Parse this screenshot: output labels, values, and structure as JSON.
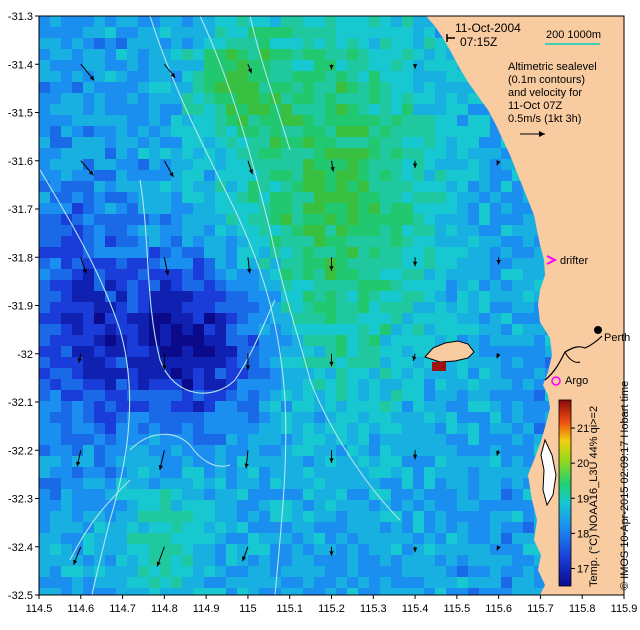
{
  "map": {
    "header": {
      "date": "11-Oct-2004",
      "time": "07:15Z",
      "scale_label": "200  1000m"
    },
    "legend_note": {
      "lines": [
        "Altimetric sealevel",
        "(0.1m contours)",
        "and velocity for",
        "11-Oct 07Z",
        "0.5m/s (1kt 3h)"
      ]
    },
    "place_labels": {
      "perth": "Perth",
      "drifter": "drifter",
      "argo": "Argo"
    },
    "colorbar": {
      "label": "Temp. (°C) NOAA16_L3U 44% qi>=2",
      "ticks": [
        17,
        18,
        19,
        20,
        21
      ],
      "min": 16.5,
      "max": 21.8
    },
    "credit": "© IMOS 10-Apr-2015 02:09:17 Hobart time",
    "axes": {
      "x_ticks": [
        "114.5",
        "114.6",
        "114.7",
        "114.8",
        "114.9",
        "115",
        "115.1",
        "115.2",
        "115.3",
        "115.4",
        "115.5",
        "115.6",
        "115.7",
        "115.8",
        "115.9"
      ],
      "y_ticks": [
        "-31.3",
        "-31.4",
        "-31.5",
        "-31.6",
        "-31.7",
        "-31.8",
        "-31.9",
        "-32",
        "-32.1",
        "-32.2",
        "-32.3",
        "-32.4",
        "-32.5"
      ],
      "lon_range": [
        114.5,
        115.9
      ],
      "lat_range": [
        -32.5,
        -31.3
      ]
    },
    "colors": {
      "land": "#f8cba0",
      "contour": "#aee6ee",
      "drifter": "#ff00ff",
      "argo": "#ff00ff",
      "scale_bar": "#00d0c0"
    },
    "velocity_arrows": [
      {
        "lon": 114.6,
        "lat": -31.4,
        "u": 0.15,
        "v": -0.18
      },
      {
        "lon": 114.8,
        "lat": -31.4,
        "u": 0.12,
        "v": -0.15
      },
      {
        "lon": 115.0,
        "lat": -31.4,
        "u": 0.04,
        "v": -0.1
      },
      {
        "lon": 115.2,
        "lat": -31.4,
        "u": 0.0,
        "v": -0.06
      },
      {
        "lon": 115.4,
        "lat": -31.4,
        "u": 0.0,
        "v": -0.05
      },
      {
        "lon": 114.6,
        "lat": -31.6,
        "u": 0.14,
        "v": -0.16
      },
      {
        "lon": 114.8,
        "lat": -31.6,
        "u": 0.1,
        "v": -0.18
      },
      {
        "lon": 115.0,
        "lat": -31.6,
        "u": 0.05,
        "v": -0.15
      },
      {
        "lon": 115.2,
        "lat": -31.6,
        "u": 0.02,
        "v": -0.12
      },
      {
        "lon": 115.4,
        "lat": -31.6,
        "u": 0.0,
        "v": -0.08
      },
      {
        "lon": 115.6,
        "lat": -31.6,
        "u": -0.02,
        "v": -0.05
      },
      {
        "lon": 114.6,
        "lat": -31.8,
        "u": 0.06,
        "v": -0.18
      },
      {
        "lon": 114.8,
        "lat": -31.8,
        "u": 0.04,
        "v": -0.2
      },
      {
        "lon": 115.0,
        "lat": -31.8,
        "u": 0.02,
        "v": -0.18
      },
      {
        "lon": 115.2,
        "lat": -31.8,
        "u": 0.0,
        "v": -0.15
      },
      {
        "lon": 115.4,
        "lat": -31.8,
        "u": 0.0,
        "v": -0.1
      },
      {
        "lon": 115.6,
        "lat": -31.8,
        "u": 0.0,
        "v": -0.08
      },
      {
        "lon": 114.6,
        "lat": -32.0,
        "u": -0.02,
        "v": -0.1
      },
      {
        "lon": 114.8,
        "lat": -32.0,
        "u": 0.0,
        "v": -0.18
      },
      {
        "lon": 115.0,
        "lat": -32.0,
        "u": 0.0,
        "v": -0.18
      },
      {
        "lon": 115.2,
        "lat": -32.0,
        "u": 0.0,
        "v": -0.14
      },
      {
        "lon": 115.4,
        "lat": -32.0,
        "u": -0.02,
        "v": -0.08
      },
      {
        "lon": 115.6,
        "lat": -32.0,
        "u": -0.02,
        "v": -0.05
      },
      {
        "lon": 114.6,
        "lat": -32.2,
        "u": -0.04,
        "v": -0.18
      },
      {
        "lon": 114.8,
        "lat": -32.2,
        "u": -0.05,
        "v": -0.22
      },
      {
        "lon": 115.0,
        "lat": -32.2,
        "u": -0.02,
        "v": -0.2
      },
      {
        "lon": 115.2,
        "lat": -32.2,
        "u": 0.0,
        "v": -0.14
      },
      {
        "lon": 115.4,
        "lat": -32.2,
        "u": 0.0,
        "v": -0.1
      },
      {
        "lon": 115.6,
        "lat": -32.2,
        "u": -0.02,
        "v": -0.06
      },
      {
        "lon": 114.6,
        "lat": -32.4,
        "u": -0.08,
        "v": -0.2
      },
      {
        "lon": 114.8,
        "lat": -32.4,
        "u": -0.08,
        "v": -0.22
      },
      {
        "lon": 115.0,
        "lat": -32.4,
        "u": -0.06,
        "v": -0.16
      },
      {
        "lon": 115.2,
        "lat": -32.4,
        "u": 0.0,
        "v": -0.1
      },
      {
        "lon": 115.4,
        "lat": -32.4,
        "u": 0.0,
        "v": -0.06
      },
      {
        "lon": 115.6,
        "lat": -32.4,
        "u": -0.02,
        "v": -0.04
      }
    ]
  }
}
